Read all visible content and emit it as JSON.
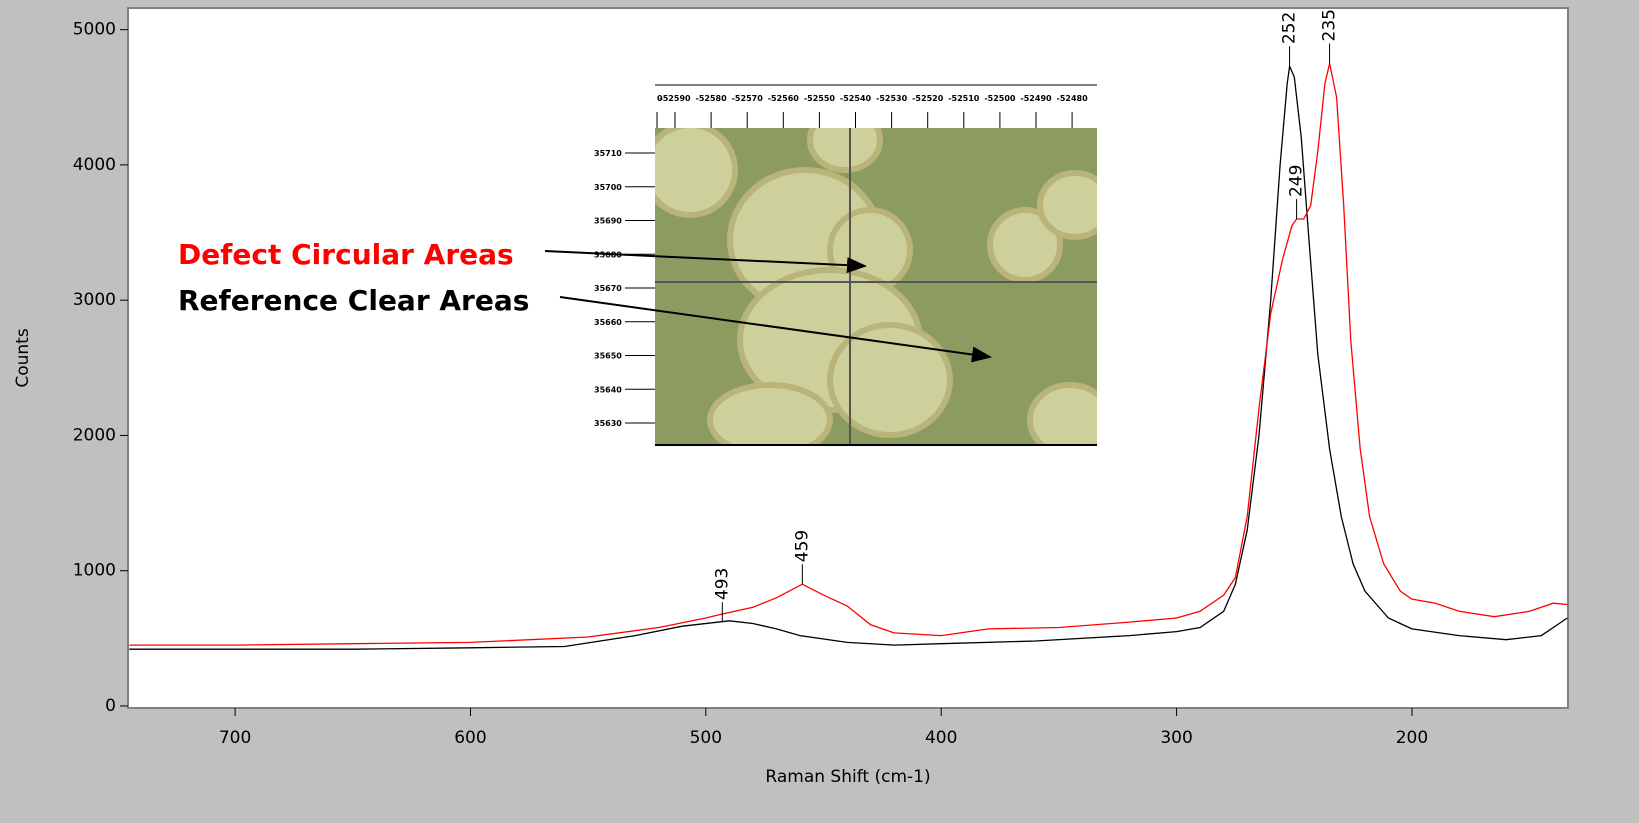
{
  "chart_data": {
    "type": "line",
    "x_label": "Raman Shift (cm-1)",
    "y_label": "Counts",
    "xlim": [
      745.5,
      133.7
    ],
    "ylim": [
      -15,
      5160
    ],
    "xticks": [
      700,
      600,
      500,
      400,
      300,
      200
    ],
    "yticks": [
      0,
      1000,
      2000,
      3000,
      4000,
      5000
    ],
    "series": [
      {
        "name": "Reference Clear Areas",
        "color": "#000000",
        "x": [
          745,
          700,
          650,
          600,
          560,
          530,
          510,
          490,
          480,
          470,
          460,
          440,
          420,
          400,
          360,
          320,
          300,
          290,
          280,
          275,
          270,
          265,
          260,
          256,
          253,
          252,
          250,
          247,
          244,
          240,
          235,
          230,
          225,
          220,
          210,
          200,
          180,
          160,
          145,
          134
        ],
        "values": [
          420,
          420,
          420,
          430,
          440,
          520,
          590,
          630,
          610,
          570,
          520,
          470,
          450,
          460,
          480,
          520,
          550,
          580,
          700,
          900,
          1300,
          2000,
          3000,
          4000,
          4600,
          4730,
          4650,
          4200,
          3500,
          2600,
          1900,
          1400,
          1050,
          850,
          650,
          570,
          520,
          490,
          520,
          650
        ]
      },
      {
        "name": "Defect Circular Areas",
        "color": "#ff0000",
        "x": [
          745,
          700,
          650,
          600,
          550,
          520,
          500,
          493,
          480,
          470,
          459,
          450,
          440,
          430,
          420,
          400,
          380,
          350,
          320,
          300,
          290,
          280,
          275,
          270,
          265,
          260,
          255,
          251,
          249,
          246,
          243,
          240,
          237,
          235,
          232,
          229,
          226,
          222,
          218,
          212,
          205,
          200,
          190,
          180,
          165,
          150,
          140,
          134
        ],
        "values": [
          450,
          450,
          460,
          470,
          510,
          580,
          650,
          680,
          730,
          800,
          900,
          820,
          740,
          600,
          540,
          520,
          570,
          580,
          620,
          650,
          700,
          820,
          950,
          1400,
          2200,
          2900,
          3300,
          3550,
          3600,
          3600,
          3700,
          4100,
          4600,
          4750,
          4500,
          3700,
          2700,
          1900,
          1400,
          1050,
          850,
          790,
          760,
          700,
          660,
          700,
          760,
          750
        ]
      }
    ],
    "peaks": [
      {
        "x": 252,
        "y": 4730
      },
      {
        "x": 235,
        "y": 4750
      },
      {
        "x": 249,
        "y": 3600
      },
      {
        "x": 493,
        "y": 620
      },
      {
        "x": 459,
        "y": 900
      }
    ]
  },
  "inset": {
    "x_labels": [
      "0",
      "-52590",
      "-52580",
      "-52570",
      "-52560",
      "-52550",
      "-52540",
      "-52530",
      "-52520",
      "-52510",
      "-52500",
      "-52490",
      "-52480"
    ],
    "y_labels": [
      "35710",
      "35700",
      "35690",
      "35680",
      "35670",
      "35660",
      "35650",
      "35640",
      "35630"
    ]
  }
}
